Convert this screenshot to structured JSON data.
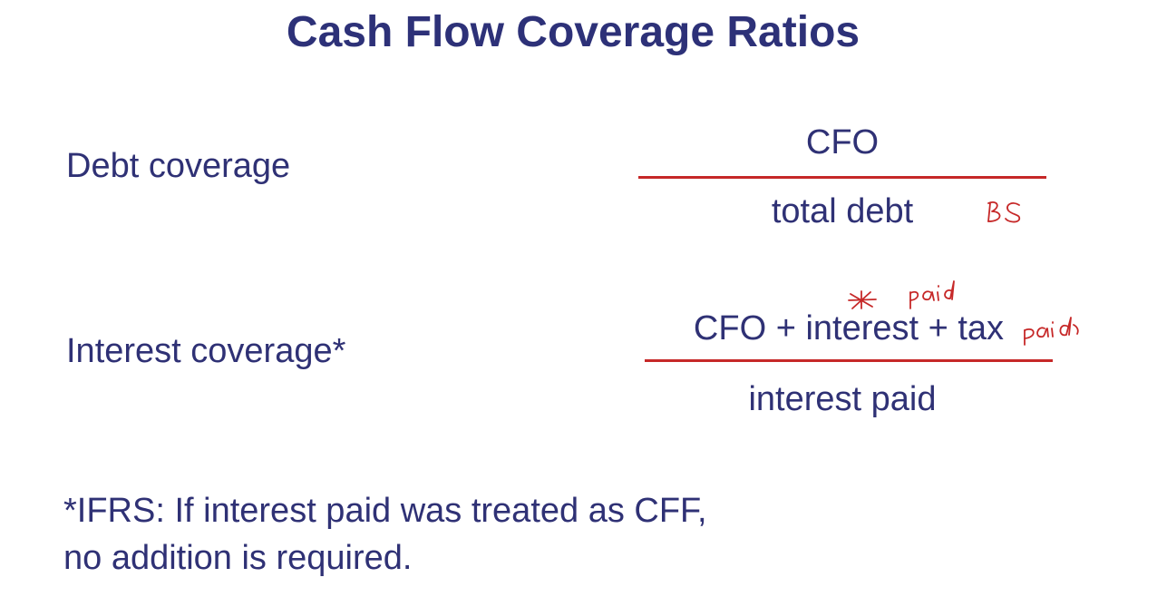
{
  "slide": {
    "title": "Cash Flow Coverage Ratios"
  },
  "ratios": [
    {
      "label": "Debt coverage",
      "numerator": "CFO",
      "denominator": "total debt"
    },
    {
      "label": "Interest coverage*",
      "numerator": "CFO + interest + tax",
      "denominator": "interest paid"
    }
  ],
  "annotations": {
    "debt_denominator_note": "BS",
    "interest_note": "paid",
    "tax_note": "paid",
    "asterisk": "*"
  },
  "footnote": {
    "line1": "*IFRS: If interest paid was treated as CFF,",
    "line2": "no addition is required."
  },
  "colors": {
    "title": "#2d3178",
    "text": "#2f3175",
    "fraction_line": "#c62828",
    "annotation_ink": "#c62828"
  }
}
